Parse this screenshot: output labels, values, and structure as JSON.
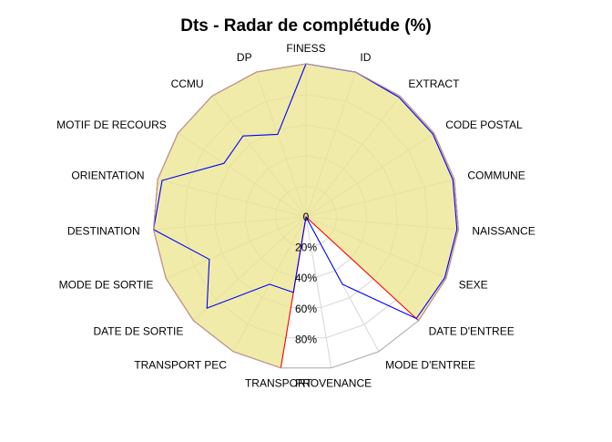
{
  "chart_data": {
    "type": "radar",
    "title": "Dts - Radar de complétude (%)",
    "categories": [
      "FINESS",
      "ID",
      "EXTRACT",
      "CODE POSTAL",
      "COMMUNE",
      "NAISSANCE",
      "SEXE",
      "DATE D'ENTREE",
      "MODE D'ENTREE",
      "PROVENANCE",
      "TRANSPORT",
      "TRANSPORT PEC",
      "DATE DE SORTIE",
      "MODE DE SORTIE",
      "DESTINATION",
      "ORIENTATION",
      "MOTIF DE RECOURS",
      "CCMU",
      "DP"
    ],
    "radial_ticks": [
      "0",
      "20%",
      "40%",
      "60%",
      "80%"
    ],
    "rlim": [
      0,
      100
    ],
    "series": [
      {
        "values": [
          100,
          100,
          100,
          100,
          100,
          100,
          100,
          100,
          0,
          0,
          100,
          100,
          100,
          100,
          100,
          100,
          100,
          100,
          100
        ],
        "stroke": "#ff0000",
        "fill": "#ece48c"
      },
      {
        "values": [
          100,
          100,
          99,
          99,
          99,
          99,
          99,
          98,
          50,
          0,
          50,
          50,
          88,
          69,
          100,
          97,
          64,
          67,
          57
        ],
        "stroke": "#0000ff",
        "fill": "none"
      }
    ]
  }
}
